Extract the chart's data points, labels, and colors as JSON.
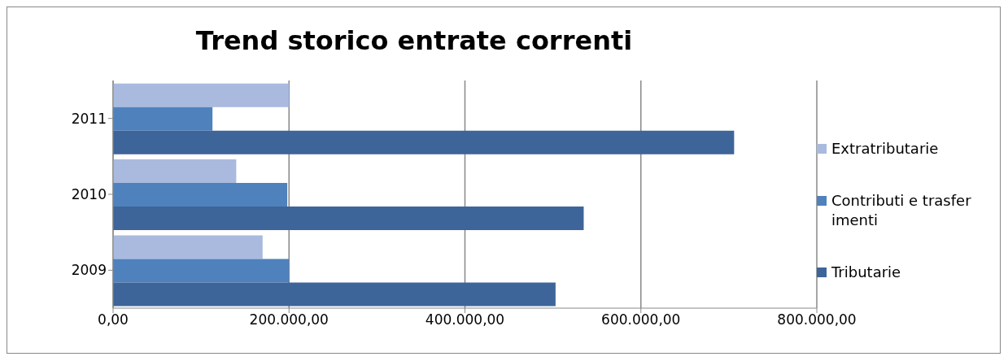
{
  "chart_data": {
    "type": "bar",
    "orientation": "horizontal",
    "title": "Trend storico entrate correnti",
    "categories": [
      "2011",
      "2010",
      "2009"
    ],
    "series": [
      {
        "name": "Extratributarie",
        "color": "#a9bade",
        "values": [
          200000,
          140000,
          170000
        ]
      },
      {
        "name": "Contributi e trasferimenti",
        "color": "#4f81bd",
        "values": [
          113000,
          198000,
          200000
        ]
      },
      {
        "name": "Tributarie",
        "color": "#3d6599",
        "values": [
          706000,
          535000,
          503000
        ]
      }
    ],
    "xlim": [
      0,
      800000
    ],
    "xticks": [
      {
        "value": 0,
        "label": "0,00"
      },
      {
        "value": 200000,
        "label": "200.000,00"
      },
      {
        "value": 400000,
        "label": "400.000,00"
      },
      {
        "value": 600000,
        "label": "600.000,00"
      },
      {
        "value": 800000,
        "label": "800.000,00"
      }
    ],
    "grid": "x",
    "legend": "right"
  }
}
